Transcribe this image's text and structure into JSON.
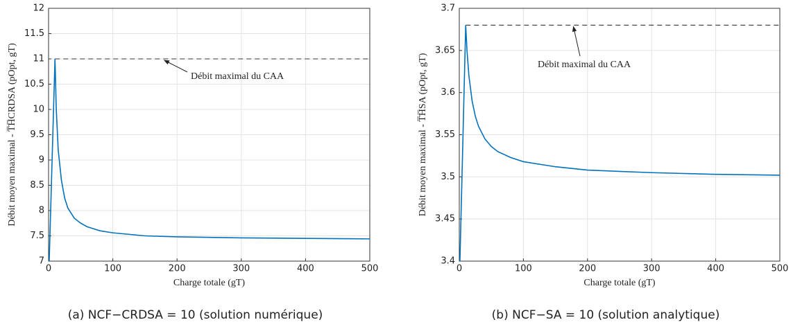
{
  "chart_data": [
    {
      "type": "line",
      "x": [
        1,
        10,
        12,
        15,
        20,
        25,
        30,
        40,
        50,
        60,
        80,
        100,
        150,
        200,
        250,
        300,
        400,
        500
      ],
      "series": [
        {
          "color": "#0072bd",
          "values": [
            7,
            11,
            10.0,
            9.2,
            8.6,
            8.25,
            8.05,
            7.85,
            7.75,
            7.68,
            7.6,
            7.56,
            7.5,
            7.48,
            7.47,
            7.46,
            7.45,
            7.44
          ]
        }
      ],
      "reference_line": {
        "value": 11,
        "xlim": [
          10,
          500
        ],
        "label": "Débit maximal du CAA"
      },
      "xlabel": "Charge totale (gT)",
      "ylabel": "Débit moyen maximal - T̅H̅CRDSA (pOpt, gT)",
      "caption": "(a) NCF−CRDSA = 10 (solution numérique)",
      "xlim": [
        0,
        500
      ],
      "xticks": [
        0,
        100,
        200,
        300,
        400,
        500
      ],
      "ylim": [
        7,
        12
      ],
      "yticks": [
        7,
        7.5,
        8,
        8.5,
        9,
        9.5,
        10,
        10.5,
        11,
        11.5,
        12
      ],
      "grid": true
    },
    {
      "type": "line",
      "x": [
        1,
        10,
        12,
        15,
        20,
        25,
        30,
        40,
        50,
        60,
        80,
        100,
        150,
        200,
        300,
        400,
        500
      ],
      "series": [
        {
          "color": "#0072bd",
          "values": [
            3.4,
            3.68,
            3.65,
            3.62,
            3.59,
            3.572,
            3.56,
            3.545,
            3.536,
            3.53,
            3.523,
            3.518,
            3.512,
            3.508,
            3.505,
            3.503,
            3.502
          ]
        }
      ],
      "reference_line": {
        "value": 3.68,
        "xlim": [
          10,
          500
        ],
        "label": "Débit maximal du CAA"
      },
      "xlabel": "Charge totale (gT)",
      "ylabel": "Débit moyen maximal - T̅H̅SA (pOpt, gT)",
      "caption": "(b) NCF−SA = 10 (solution analytique)",
      "xlim": [
        0,
        500
      ],
      "xticks": [
        0,
        100,
        200,
        300,
        400,
        500
      ],
      "ylim": [
        3.4,
        3.7
      ],
      "yticks": [
        3.4,
        3.45,
        3.5,
        3.55,
        3.6,
        3.65,
        3.7
      ],
      "grid": true
    }
  ]
}
